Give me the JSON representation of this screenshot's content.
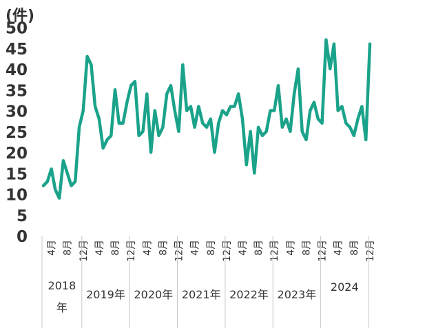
{
  "chart_data": {
    "type": "line",
    "y_unit": "(件)",
    "ylim": [
      0,
      50
    ],
    "y_ticks": [
      0,
      5,
      10,
      15,
      20,
      25,
      30,
      35,
      40,
      45,
      50
    ],
    "grid": false,
    "legend": "none",
    "line_color": "#1aa38a",
    "start_month": "2018-02",
    "x": [
      "2018-02",
      "2018-03",
      "2018-04",
      "2018-05",
      "2018-06",
      "2018-07",
      "2018-08",
      "2018-09",
      "2018-10",
      "2018-11",
      "2018-12",
      "2019-01",
      "2019-02",
      "2019-03",
      "2019-04",
      "2019-05",
      "2019-06",
      "2019-07",
      "2019-08",
      "2019-09",
      "2019-10",
      "2019-11",
      "2019-12",
      "2020-01",
      "2020-02",
      "2020-03",
      "2020-04",
      "2020-05",
      "2020-06",
      "2020-07",
      "2020-08",
      "2020-09",
      "2020-10",
      "2020-11",
      "2020-12",
      "2021-01",
      "2021-02",
      "2021-03",
      "2021-04",
      "2021-05",
      "2021-06",
      "2021-07",
      "2021-08",
      "2021-09",
      "2021-10",
      "2021-11",
      "2021-12",
      "2022-01",
      "2022-02",
      "2022-03",
      "2022-04",
      "2022-05",
      "2022-06",
      "2022-07",
      "2022-08",
      "2022-09",
      "2022-10",
      "2022-11",
      "2022-12",
      "2023-01",
      "2023-02",
      "2023-03",
      "2023-04",
      "2023-05",
      "2023-06",
      "2023-07",
      "2023-08",
      "2023-09",
      "2023-10",
      "2023-11",
      "2023-12",
      "2024-01",
      "2024-02",
      "2024-03",
      "2024-04",
      "2024-05",
      "2024-06",
      "2024-07",
      "2024-08",
      "2024-09",
      "2024-10",
      "2024-11",
      "2024-12"
    ],
    "values": [
      12,
      13,
      16,
      11,
      9,
      18,
      15,
      12,
      13,
      26,
      30,
      43,
      41,
      31,
      28,
      21,
      23,
      24,
      35,
      27,
      27,
      32,
      36,
      37,
      24,
      25,
      34,
      20,
      30,
      24,
      26,
      34,
      36,
      30,
      25,
      41,
      30,
      31,
      26,
      31,
      27,
      26,
      28,
      20,
      27,
      30,
      29,
      31,
      31,
      34,
      28,
      17,
      25,
      15,
      26,
      24,
      25,
      30,
      30,
      36,
      26,
      28,
      25,
      34,
      40,
      25,
      23,
      30,
      32,
      28,
      27,
      47,
      40,
      46,
      30,
      31,
      27,
      26,
      24,
      28,
      31,
      23,
      46
    ],
    "x_ticks": [
      {
        "month": "2018-04",
        "label": "4月"
      },
      {
        "month": "2018-08",
        "label": "8月"
      },
      {
        "month": "2018-12",
        "label": "12月"
      },
      {
        "month": "2019-04",
        "label": "4月"
      },
      {
        "month": "2019-08",
        "label": "8月"
      },
      {
        "month": "2019-12",
        "label": "12月"
      },
      {
        "month": "2020-04",
        "label": "4月"
      },
      {
        "month": "2020-08",
        "label": "8月"
      },
      {
        "month": "2020-12",
        "label": "12月"
      },
      {
        "month": "2021-04",
        "label": "4月"
      },
      {
        "month": "2021-08",
        "label": "8月"
      },
      {
        "month": "2021-12",
        "label": "12月"
      },
      {
        "month": "2022-04",
        "label": "4月"
      },
      {
        "month": "2022-08",
        "label": "8月"
      },
      {
        "month": "2022-12",
        "label": "12月"
      },
      {
        "month": "2023-04",
        "label": "4月"
      },
      {
        "month": "2023-08",
        "label": "8月"
      },
      {
        "month": "2023-12",
        "label": "12月"
      },
      {
        "month": "2024-04",
        "label": "4月"
      },
      {
        "month": "2024-08",
        "label": "8月"
      },
      {
        "month": "2024-12",
        "label": "12月"
      }
    ],
    "year_labels": [
      "2018\n年",
      "2019年",
      "2020年",
      "2021年",
      "2022年",
      "2023年",
      "2024"
    ]
  }
}
